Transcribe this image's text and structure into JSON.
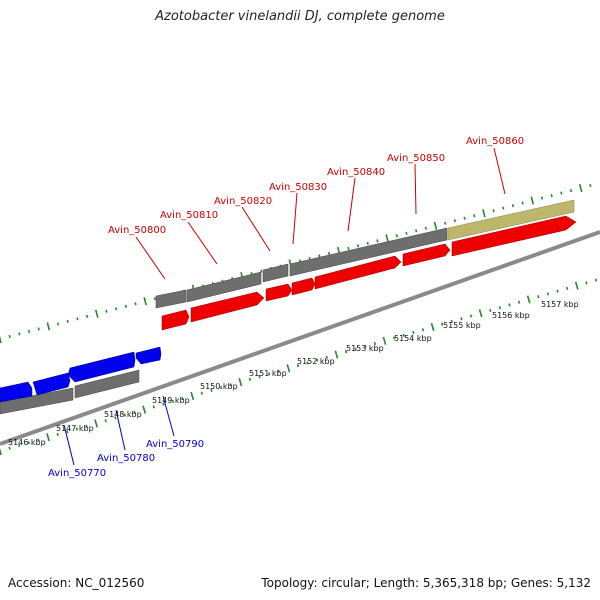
{
  "title": "Azotobacter vinelandii DJ, complete genome",
  "footer": {
    "accession": "Accession: NC_012560",
    "info": "Topology: circular; Length: 5,365,318 bp; Genes: 5,132"
  },
  "colors": {
    "plus_strand_cds": "#ff0000",
    "minus_strand_cds": "#0000ff",
    "gene": "#7a7a7a",
    "other_feature": "#bdb76b",
    "backbone": "#888888",
    "tick": "#228b22"
  },
  "scale_labels": [
    "5146 kbp",
    "5147 kbp",
    "5148 kbp",
    "5149 kbp",
    "5150 kbp",
    "5151 kbp",
    "5152 kbp",
    "5153 kbp",
    "5154 kbp",
    "5155 kbp",
    "5156 kbp",
    "5157 kbp"
  ],
  "upper_gene_labels": [
    "Avin_50800",
    "Avin_50810",
    "Avin_50820",
    "Avin_50830",
    "Avin_50840",
    "Avin_50850",
    "Avin_50860"
  ],
  "lower_gene_labels": [
    "Avin_50770",
    "Avin_50780",
    "Avin_50790"
  ]
}
